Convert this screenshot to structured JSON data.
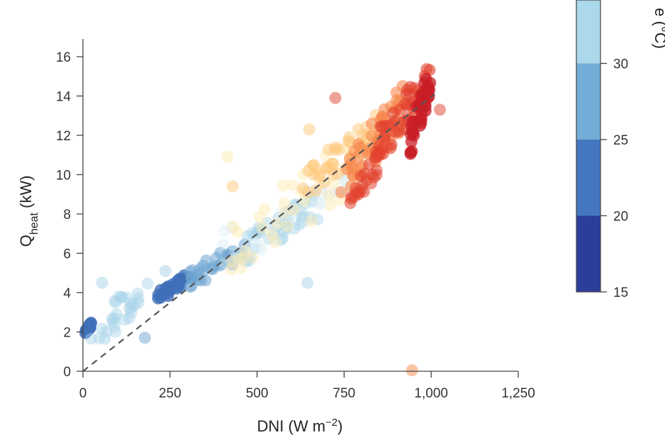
{
  "chart_data": {
    "type": "scatter",
    "xlabel": {
      "main": "DNI (W m",
      "sup": "−2",
      "tail": ")"
    },
    "ylabel": {
      "main": "Q",
      "sub": "heat",
      "tail": " (kW)"
    },
    "xlim": [
      0,
      1250
    ],
    "ylim": [
      0,
      16.5
    ],
    "xticks": [
      0,
      250,
      500,
      750,
      1000,
      1250
    ],
    "xtick_labels": [
      "0",
      "250",
      "500",
      "750",
      "1,000",
      "1,250"
    ],
    "yticks": [
      0,
      2,
      4,
      6,
      8,
      10,
      12,
      14,
      16
    ],
    "ytick_labels": [
      "0",
      "2",
      "4",
      "6",
      "8",
      "10",
      "12",
      "14",
      "16"
    ],
    "reference_line": {
      "style": "dashed",
      "color": "#555555",
      "x": [
        0,
        1010
      ],
      "y": [
        0,
        14.1
      ]
    },
    "colorbar": {
      "label": "Temperature (°C)",
      "visible_label_fragment": "e (°C)",
      "range": [
        15,
        35
      ],
      "ticks": [
        15,
        20,
        25,
        30
      ],
      "tick_labels": [
        "15",
        "20",
        "25",
        "30"
      ],
      "bands": [
        {
          "from": 15,
          "to": 20,
          "color": "#2b3e9a"
        },
        {
          "from": 20,
          "to": 25,
          "color": "#4477bf"
        },
        {
          "from": 25,
          "to": 30,
          "color": "#73acd6"
        },
        {
          "from": 30,
          "to": 35,
          "color": "#abd8ea"
        }
      ]
    },
    "point_colors": {
      "c15": "#2b3e9a",
      "c20": "#3f6fb8",
      "c25": "#6fa6d2",
      "c28": "#a7d2e8",
      "c31": "#d7ecf4",
      "c34": "#fde9b0",
      "c37": "#fdc87a",
      "c40": "#f6894f",
      "c43": "#e2432f",
      "c46": "#c81d26"
    },
    "clusters": [
      {
        "color": "c20",
        "alpha": 0.85,
        "n": 14,
        "x": [
          5,
          25
        ],
        "y": [
          1.9,
          2.4
        ]
      },
      {
        "color": "c28",
        "alpha": 0.45,
        "n": 28,
        "x": [
          20,
          190
        ],
        "y": [
          1.5,
          4.6
        ]
      },
      {
        "color": "c20",
        "alpha": 0.8,
        "n": 30,
        "x": [
          215,
          310
        ],
        "y": [
          3.8,
          4.8
        ]
      },
      {
        "color": "c25",
        "alpha": 0.55,
        "n": 30,
        "x": [
          290,
          470
        ],
        "y": [
          4.5,
          6.3
        ]
      },
      {
        "color": "c28",
        "alpha": 0.45,
        "n": 40,
        "x": [
          430,
          680
        ],
        "y": [
          5.8,
          8.5
        ]
      },
      {
        "color": "c31",
        "alpha": 0.35,
        "n": 30,
        "x": [
          390,
          760
        ],
        "y": [
          6.0,
          9.5
        ]
      },
      {
        "color": "c34",
        "alpha": 0.45,
        "n": 40,
        "x": [
          420,
          860
        ],
        "y": [
          6.2,
          11.5
        ]
      },
      {
        "color": "c37",
        "alpha": 0.5,
        "n": 45,
        "x": [
          630,
          860
        ],
        "y": [
          9.5,
          12.5
        ]
      },
      {
        "color": "c40",
        "alpha": 0.6,
        "n": 50,
        "x": [
          740,
          920
        ],
        "y": [
          9.5,
          13.5
        ]
      },
      {
        "color": "c43",
        "alpha": 0.55,
        "n": 25,
        "x": [
          760,
          850
        ],
        "y": [
          8.3,
          10.8
        ]
      },
      {
        "color": "c43",
        "alpha": 0.6,
        "n": 45,
        "x": [
          850,
          1000
        ],
        "y": [
          11.5,
          15.0
        ]
      },
      {
        "color": "c46",
        "alpha": 0.75,
        "n": 35,
        "x": [
          940,
          1000
        ],
        "y": [
          11.8,
          15.0
        ]
      }
    ],
    "outliers": [
      {
        "x": 15,
        "y": 2.2,
        "color": "c20"
      },
      {
        "x": 55,
        "y": 4.5,
        "color": "c28"
      },
      {
        "x": 178,
        "y": 1.7,
        "color": "c25"
      },
      {
        "x": 237,
        "y": 5.1,
        "color": "c28"
      },
      {
        "x": 415,
        "y": 10.9,
        "color": "c34"
      },
      {
        "x": 430,
        "y": 9.4,
        "color": "c37"
      },
      {
        "x": 645,
        "y": 4.5,
        "color": "c28"
      },
      {
        "x": 650,
        "y": 12.3,
        "color": "c37"
      },
      {
        "x": 725,
        "y": 13.9,
        "color": "c43"
      },
      {
        "x": 1025,
        "y": 13.3,
        "color": "c43"
      },
      {
        "x": 945,
        "y": 0.05,
        "color": "c40"
      }
    ]
  }
}
